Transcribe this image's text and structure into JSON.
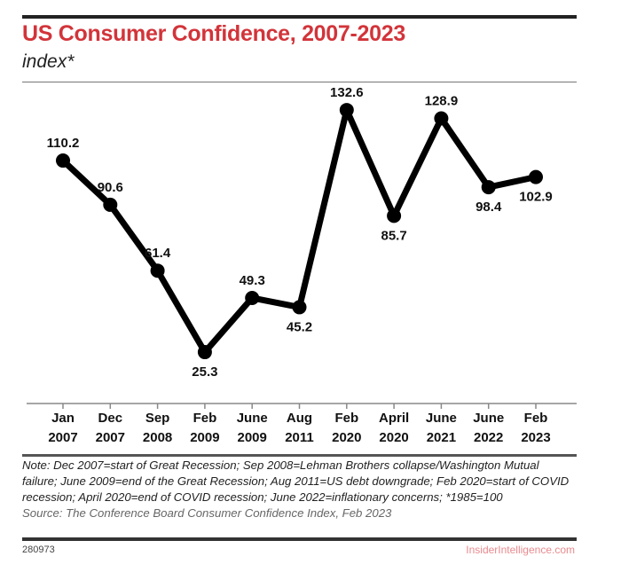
{
  "chart_data": {
    "type": "line",
    "title": "US Consumer Confidence, 2007-2023",
    "subtitle": "index*",
    "categories": [
      [
        "Jan",
        "2007"
      ],
      [
        "Dec",
        "2007"
      ],
      [
        "Sep",
        "2008"
      ],
      [
        "Feb",
        "2009"
      ],
      [
        "June",
        "2009"
      ],
      [
        "Aug",
        "2011"
      ],
      [
        "Feb",
        "2020"
      ],
      [
        "April",
        "2020"
      ],
      [
        "June",
        "2021"
      ],
      [
        "June",
        "2022"
      ],
      [
        "Feb",
        "2023"
      ]
    ],
    "values": [
      110.2,
      90.6,
      61.4,
      25.3,
      49.3,
      45.2,
      132.6,
      85.7,
      128.9,
      98.4,
      102.9
    ],
    "data_labels": [
      "110.2",
      "90.6",
      "61.4",
      "25.3",
      "49.3",
      "45.2",
      "132.6",
      "85.7",
      "128.9",
      "98.4",
      "102.9"
    ],
    "grid": false,
    "line_color": "#000000",
    "title_color": "#d2343a"
  },
  "note": "Note: Dec 2007=start of Great Recession; Sep 2008=Lehman Brothers collapse/Washington Mutual failure; June 2009=end of the Great Recession; Aug 2011=US debt downgrade; Feb 2020=start of COVID recession; April 2020=end of COVID recession; June 2022=inflationary concerns; *1985=100",
  "source": "Source: The Conference Board Consumer Confidence Index, Feb 2023",
  "chart_id": "280973",
  "brand": "InsiderIntelligence.com"
}
